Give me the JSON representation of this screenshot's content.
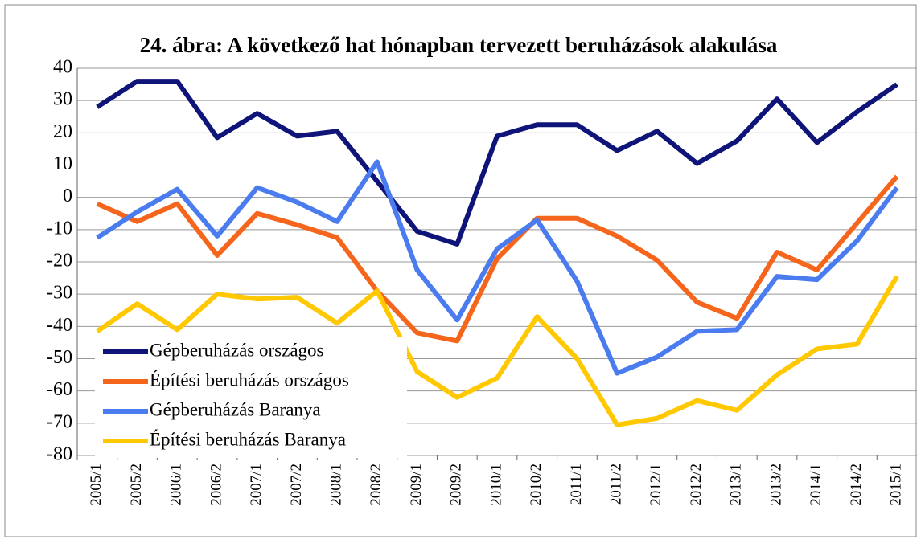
{
  "chart_data": {
    "type": "line",
    "title": "24. ábra: A következő hat hónapban tervezett beruházások alakulása",
    "categories": [
      "2005/1",
      "2005/2",
      "2006/1",
      "2006/2",
      "2007/1",
      "2007/2",
      "2008/1",
      "2008/2",
      "2009/1",
      "2009/2",
      "2010/1",
      "2010/2",
      "2011/1",
      "2011/2",
      "2012/1",
      "2012/2",
      "2013/1",
      "2013/2",
      "2014/1",
      "2014/2",
      "2015/1"
    ],
    "series": [
      {
        "name": "Gépberuházás országos",
        "color": "#0f1478",
        "values": [
          28,
          36,
          36,
          18.5,
          26,
          19,
          20.5,
          5,
          -10.5,
          -14.5,
          19,
          22.5,
          22.5,
          14.5,
          20.5,
          10.5,
          17.5,
          30.5,
          17,
          26.5,
          35
        ]
      },
      {
        "name": "Építési beruházás országos",
        "color": "#f5661c",
        "values": [
          -2,
          -7.5,
          -2,
          -18,
          -5,
          -8.5,
          -12.5,
          -29,
          -42,
          -44.5,
          -19,
          -6.5,
          -6.5,
          -12,
          -19.5,
          -32.5,
          -37.5,
          -17,
          -22.5,
          -8,
          6.5
        ]
      },
      {
        "name": "Gépberuházás Baranya",
        "color": "#4a7cf0",
        "values": [
          -12.5,
          -4.5,
          2.5,
          -12,
          3,
          -1.5,
          -7.5,
          11,
          -22.5,
          -38,
          -16,
          -7,
          -26,
          -54.5,
          -49.5,
          -41.5,
          -41,
          -24.5,
          -25.5,
          -13.5,
          3
        ]
      },
      {
        "name": "Építési beruházás Baranya",
        "color": "#ffc800",
        "values": [
          -41.5,
          -33,
          -41,
          -30,
          -31.5,
          -31,
          -39,
          -29,
          -54,
          -62,
          -56,
          -37,
          -50,
          -70.5,
          -68.5,
          -63,
          -66,
          -55,
          -47,
          -45.5,
          -24.5
        ]
      }
    ],
    "ylim": [
      -80,
      40
    ],
    "yticks": [
      -80,
      -70,
      -60,
      -50,
      -40,
      -30,
      -20,
      -10,
      0,
      10,
      20,
      30,
      40
    ],
    "grid": true,
    "legend": "lower left"
  }
}
